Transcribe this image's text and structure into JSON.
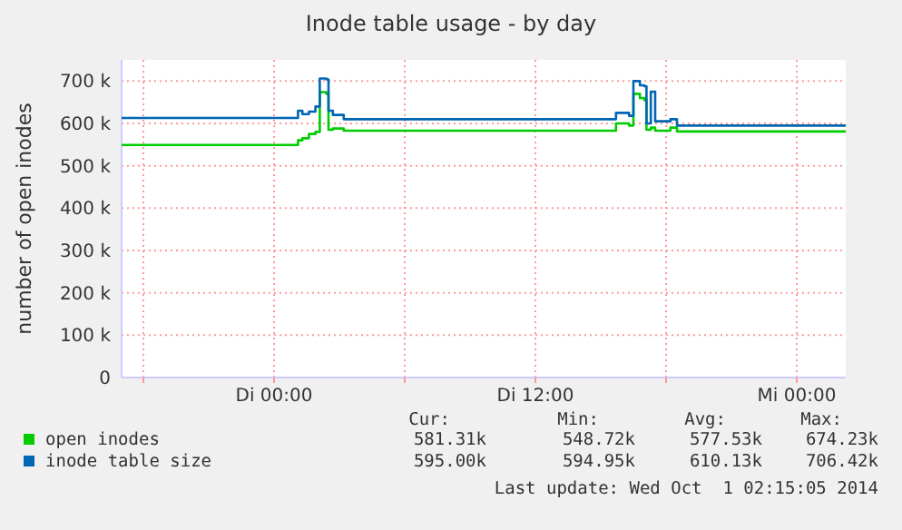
{
  "chart_data": {
    "type": "line",
    "title": "Inode table usage - by day",
    "ylabel": "number of open inodes",
    "x": [
      "2014-09-29T17:00",
      "2014-09-30T00:54",
      "2014-09-30T01:06",
      "2014-09-30T01:18",
      "2014-09-30T01:36",
      "2014-09-30T01:54",
      "2014-09-30T02:06",
      "2014-09-30T02:24",
      "2014-09-30T02:30",
      "2014-09-30T02:42",
      "2014-09-30T03:12",
      "2014-09-30T15:30",
      "2014-09-30T15:42",
      "2014-09-30T16:18",
      "2014-09-30T16:30",
      "2014-09-30T16:48",
      "2014-09-30T17:00",
      "2014-09-30T17:06",
      "2014-09-30T17:18",
      "2014-09-30T17:30",
      "2014-09-30T18:12",
      "2014-09-30T18:30",
      "2014-10-01T02:15"
    ],
    "series": [
      {
        "name": "open inodes",
        "color": "#00cc00",
        "values": [
          549000,
          549000,
          560000,
          565000,
          575000,
          580000,
          674000,
          670000,
          585000,
          588000,
          583000,
          583000,
          600000,
          595000,
          670000,
          660000,
          655000,
          585000,
          590000,
          583000,
          590000,
          581000,
          581000
        ]
      },
      {
        "name": "inode table size",
        "color": "#0066b3",
        "values": [
          613000,
          613000,
          630000,
          622000,
          628000,
          640000,
          706000,
          704000,
          630000,
          620000,
          610000,
          610000,
          625000,
          618000,
          700000,
          690000,
          688000,
          600000,
          675000,
          605000,
          610000,
          595000,
          595000
        ]
      }
    ],
    "xlim": [
      "2014-09-29T17:00",
      "2014-10-01T02:15"
    ],
    "xticks": [
      {
        "value": "2014-09-29T18:00",
        "label": null
      },
      {
        "value": "2014-09-30T00:00",
        "label": "Di 00:00"
      },
      {
        "value": "2014-09-30T06:00",
        "label": null
      },
      {
        "value": "2014-09-30T12:00",
        "label": "Di 12:00"
      },
      {
        "value": "2014-09-30T18:00",
        "label": null
      },
      {
        "value": "2014-10-01T00:00",
        "label": "Mi 00:00"
      }
    ],
    "ylim": [
      0,
      750000
    ],
    "yticks": [
      0,
      {
        "value": 100000,
        "label": "100 k"
      },
      {
        "value": 200000,
        "label": "200 k"
      },
      {
        "value": 300000,
        "label": "300 k"
      },
      {
        "value": 400000,
        "label": "400 k"
      },
      {
        "value": 500000,
        "label": "500 k"
      },
      {
        "value": 600000,
        "label": "600 k"
      },
      {
        "value": 700000,
        "label": "700 k"
      }
    ],
    "grid": true,
    "legend": "bottom",
    "annotations": [
      "Cur:",
      "Min:",
      "Avg:",
      "Max:",
      "581.31k",
      "548.72k",
      "577.53k",
      "674.23k",
      "595.00k",
      "594.95k",
      "610.13k",
      "706.42k",
      "Last update: Wed Oct  1 02:15:05 2014"
    ]
  }
}
